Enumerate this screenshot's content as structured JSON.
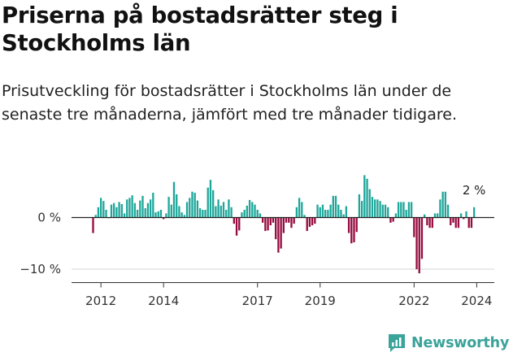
{
  "header": {
    "title": "Priserna på bostadsrätter steg i Stockholms län",
    "subtitle": "Prisutveckling för bostadsrätter i Stockholms län under de senaste tre månaderna, jämfört med tre månader tidigare."
  },
  "brand": {
    "name": "Newsworthy"
  },
  "colors": {
    "positive": "#1ea69a",
    "negative": "#960b3f",
    "zero_line": "#222222",
    "grid": "#d4d4d4",
    "axis_text": "#333333"
  },
  "chart_data": {
    "type": "bar",
    "title": "",
    "xlabel": "",
    "ylabel": "",
    "x_start": "2011-10",
    "frequency": "monthly",
    "ylim": [
      -11.5,
      8.5
    ],
    "y_ticks": [
      0,
      -10
    ],
    "y_tick_labels": [
      "0 %",
      "−10 %"
    ],
    "x_ticks": [
      "2012",
      "2014",
      "2017",
      "2019",
      "2022",
      "2024"
    ],
    "annotation": "2 %",
    "values": [
      -3,
      0.5,
      2,
      3.8,
      3.2,
      1.5,
      0,
      2.5,
      2.8,
      2,
      3,
      2.6,
      0.8,
      3.5,
      3.8,
      4.3,
      2.8,
      1.5,
      3.3,
      4.2,
      1.8,
      2.8,
      3.5,
      4.8,
      1,
      1.2,
      1.5,
      -0.3,
      0.8,
      4,
      2.5,
      6.9,
      4.5,
      2.2,
      1,
      0.5,
      3,
      3.8,
      5,
      4.8,
      3.3,
      1.8,
      1.5,
      1.5,
      5.8,
      7.3,
      5.3,
      2.2,
      3.5,
      2.3,
      3,
      1.5,
      3.5,
      2,
      -1.2,
      -3.5,
      -2.5,
      1,
      1.5,
      2.3,
      3.4,
      3,
      2.5,
      1.5,
      0.8,
      -1,
      -2.6,
      -2.5,
      -1.5,
      -1,
      -4.2,
      -6.8,
      -6,
      -3,
      -1,
      -1,
      -2,
      -1.2,
      2,
      3.8,
      3,
      0.5,
      -2.6,
      -1.8,
      -1.5,
      -1.2,
      2.5,
      2,
      2.5,
      1.5,
      1.5,
      2.5,
      4.2,
      4.2,
      2.5,
      1.5,
      0.6,
      2.2,
      -3,
      -5,
      -4.8,
      -2.8,
      4.5,
      3.2,
      8.2,
      7.5,
      5.5,
      4,
      3.5,
      3.5,
      3.2,
      2.5,
      2.5,
      2,
      -1,
      -0.8,
      0.8,
      3,
      3,
      3,
      1.5,
      3,
      3,
      -3.8,
      -10,
      -10.8,
      -8,
      0.6,
      -1.5,
      -2,
      -2,
      0.8,
      0.8,
      3.5,
      5,
      5,
      2.5,
      -1.5,
      -1,
      -2,
      -2,
      0.8,
      -0.3,
      1.2,
      -2,
      -2,
      2
    ]
  }
}
